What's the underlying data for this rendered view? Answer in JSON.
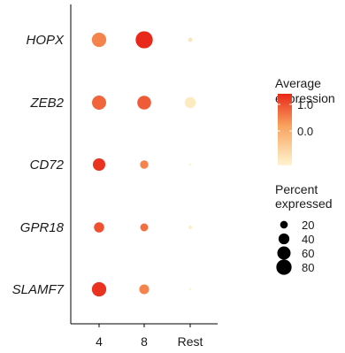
{
  "chart_data": {
    "type": "scatter",
    "subtype": "dot-plot",
    "genes": [
      "HOPX",
      "ZEB2",
      "CD72",
      "GPR18",
      "SLAMF7"
    ],
    "groups": [
      "4",
      "8",
      "Rest"
    ],
    "points": [
      {
        "gene": "HOPX",
        "group": "4",
        "avg_expression": 0.5,
        "pct_expressed": 60
      },
      {
        "gene": "HOPX",
        "group": "8",
        "avg_expression": 1.4,
        "pct_expressed": 85
      },
      {
        "gene": "HOPX",
        "group": "Rest",
        "avg_expression": -1.0,
        "pct_expressed": 5
      },
      {
        "gene": "ZEB2",
        "group": "4",
        "avg_expression": 0.8,
        "pct_expressed": 58
      },
      {
        "gene": "ZEB2",
        "group": "8",
        "avg_expression": 0.9,
        "pct_expressed": 55
      },
      {
        "gene": "ZEB2",
        "group": "Rest",
        "avg_expression": -1.1,
        "pct_expressed": 35
      },
      {
        "gene": "CD72",
        "group": "4",
        "avg_expression": 1.3,
        "pct_expressed": 45
      },
      {
        "gene": "CD72",
        "group": "8",
        "avg_expression": 0.5,
        "pct_expressed": 20
      },
      {
        "gene": "CD72",
        "group": "Rest",
        "avg_expression": -1.3,
        "pct_expressed": 2
      },
      {
        "gene": "GPR18",
        "group": "4",
        "avg_expression": 1.0,
        "pct_expressed": 30
      },
      {
        "gene": "GPR18",
        "group": "8",
        "avg_expression": 0.7,
        "pct_expressed": 18
      },
      {
        "gene": "GPR18",
        "group": "Rest",
        "avg_expression": -1.2,
        "pct_expressed": 4
      },
      {
        "gene": "SLAMF7",
        "group": "4",
        "avg_expression": 1.3,
        "pct_expressed": 60
      },
      {
        "gene": "SLAMF7",
        "group": "8",
        "avg_expression": 0.5,
        "pct_expressed": 28
      },
      {
        "gene": "SLAMF7",
        "group": "Rest",
        "avg_expression": -1.3,
        "pct_expressed": 2
      }
    ],
    "color_legend": {
      "title": [
        "Average",
        "expression"
      ],
      "ticks": [
        {
          "value": 1.0,
          "label": "1.0"
        },
        {
          "value": 0.0,
          "label": "0.0"
        }
      ],
      "range": [
        -1.3,
        1.4
      ],
      "low_color": "#fff5d0",
      "mid_color": "#f9a35e",
      "high_color": "#e8281a"
    },
    "size_legend": {
      "title": [
        "Percent",
        "expressed"
      ],
      "values": [
        20,
        40,
        60,
        80
      ],
      "labels": [
        "20",
        "40",
        "60",
        "80"
      ]
    },
    "grid": false,
    "legend_position": "right"
  }
}
